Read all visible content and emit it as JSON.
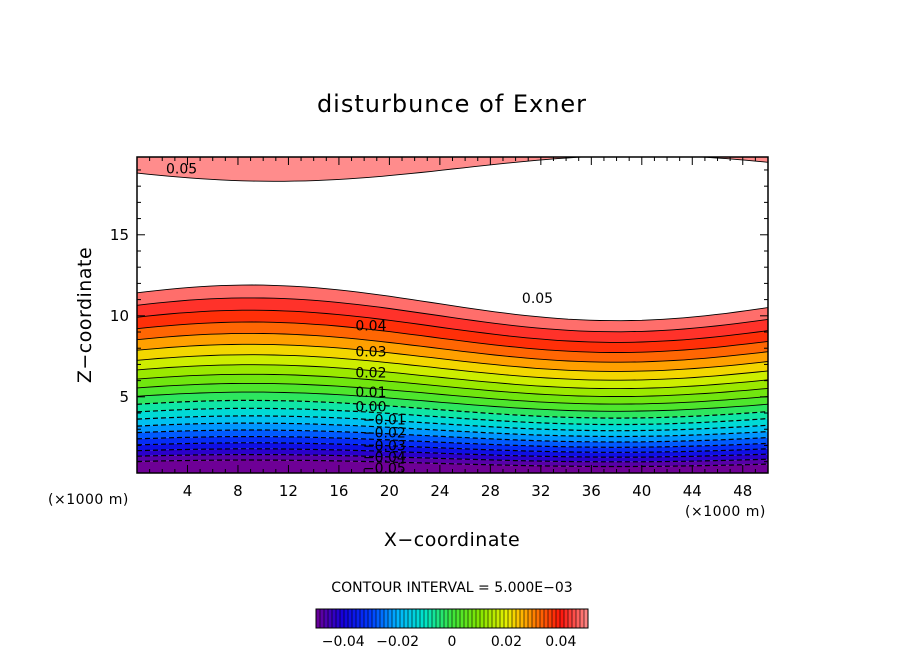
{
  "chart_data": {
    "type": "contour",
    "title": "disturbunce of Exner",
    "xlabel": "X−coordinate",
    "ylabel": "Z−coordinate",
    "x_unit_left": "(×1000 m)",
    "x_unit_right": "(×1000 m)",
    "xlim": [
      0,
      50
    ],
    "ylim": [
      0.3,
      19.8
    ],
    "x_ticks": [
      4,
      8,
      12,
      16,
      20,
      24,
      28,
      32,
      36,
      40,
      44,
      48
    ],
    "y_ticks": [
      5,
      10,
      15
    ],
    "contour_interval_text": "CONTOUR INTERVAL = 5.000E−03",
    "contour_levels": [
      -0.05,
      -0.045,
      -0.04,
      -0.035,
      -0.03,
      -0.025,
      -0.02,
      -0.015,
      -0.01,
      -0.005,
      0.0,
      0.005,
      0.01,
      0.015,
      0.02,
      0.025,
      0.03,
      0.035,
      0.04,
      0.045,
      0.05
    ],
    "contour_labels": [
      {
        "text": "0.05",
        "x": 2.3,
        "z": 19.1
      },
      {
        "text": "0.05",
        "x": 30.5,
        "z": 11.1
      },
      {
        "text": "0.04",
        "x": 17.3,
        "z": 9.4
      },
      {
        "text": "0.03",
        "x": 17.3,
        "z": 7.8
      },
      {
        "text": "0.02",
        "x": 17.3,
        "z": 6.5
      },
      {
        "text": "0.01",
        "x": 17.3,
        "z": 5.3
      },
      {
        "text": "0.00",
        "x": 17.3,
        "z": 4.4
      },
      {
        "text": "−0.01",
        "x": 17.9,
        "z": 3.6
      },
      {
        "text": "−0.02",
        "x": 17.9,
        "z": 2.8
      },
      {
        "text": "−0.03",
        "x": 17.9,
        "z": 2.0
      },
      {
        "text": "−0.04",
        "x": 17.9,
        "z": 1.3
      },
      {
        "text": "−0.05",
        "x": 17.9,
        "z": 0.6
      }
    ],
    "colorbar": {
      "min": -0.05,
      "max": 0.05,
      "tick_labels": [
        "−0.04",
        "−0.02",
        "0",
        "0.02",
        "0.04"
      ],
      "tick_values": [
        -0.04,
        -0.02,
        0,
        0.02,
        0.04
      ]
    },
    "grid": false
  }
}
